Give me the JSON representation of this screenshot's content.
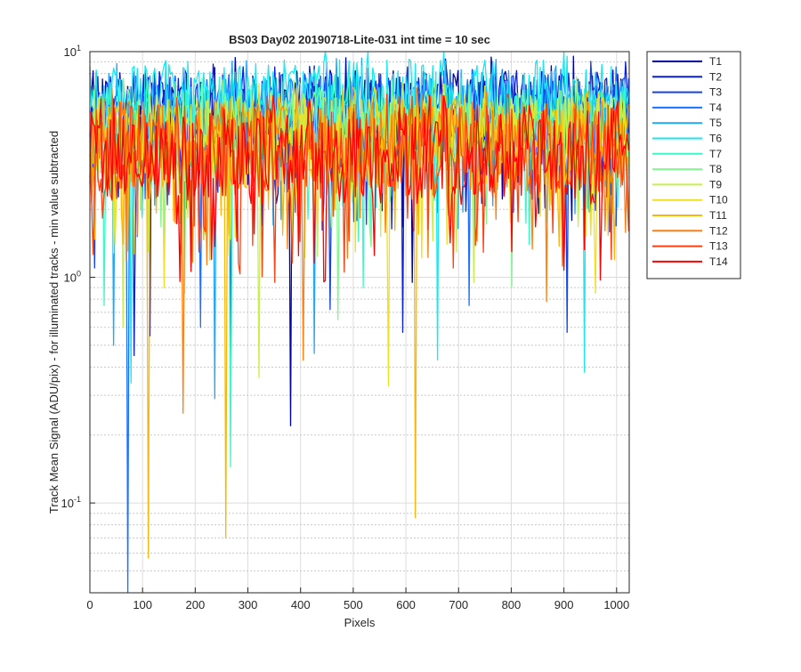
{
  "chart_data": {
    "type": "line",
    "title": "BS03 Day02 20190718-Lite-031 int time = 10 sec",
    "xlabel": "Pixels",
    "ylabel": "Track Mean Signal (ADU/pix) - for illuminated tracks - min value subtracted",
    "xlim": [
      0,
      1024
    ],
    "ylim": [
      0.04,
      10
    ],
    "yscale": "log",
    "grid": true,
    "minor_grid": true,
    "legend_position": "outside-right",
    "xticks": [
      "0",
      "100",
      "200",
      "300",
      "400",
      "500",
      "600",
      "700",
      "800",
      "900",
      "1000"
    ],
    "yticks": [
      {
        "value": 10,
        "base": "10",
        "exp": "1"
      },
      {
        "value": 1,
        "base": "10",
        "exp": "0"
      },
      {
        "value": 0.1,
        "base": "10",
        "exp": "-1"
      }
    ],
    "series": [
      {
        "name": "T1",
        "color": "#0000a8",
        "band": [
          3.6,
          8.5
        ],
        "dips": [
          [
            115,
            0.55
          ],
          [
            380,
            0.22
          ],
          [
            612,
            0.95
          ]
        ]
      },
      {
        "name": "T2",
        "color": "#0a1fe0",
        "band": [
          3.5,
          8.2
        ],
        "dips": [
          [
            84,
            0.45
          ],
          [
            268,
            0.38
          ],
          [
            595,
            0.57
          ]
        ]
      },
      {
        "name": "T3",
        "color": "#1044e8",
        "band": [
          3.4,
          8.0
        ],
        "dips": [
          [
            10,
            1.1
          ],
          [
            455,
            0.72
          ],
          [
            905,
            0.57
          ]
        ]
      },
      {
        "name": "T4",
        "color": "#1a70ff",
        "band": [
          3.3,
          7.8
        ],
        "dips": [
          [
            72,
            0.04
          ],
          [
            210,
            0.6
          ],
          [
            720,
            0.75
          ]
        ]
      },
      {
        "name": "T5",
        "color": "#20a8f8",
        "band": [
          3.6,
          8.3
        ],
        "dips": [
          [
            45,
            0.5
          ],
          [
            238,
            0.29
          ],
          [
            425,
            0.46
          ]
        ]
      },
      {
        "name": "T6",
        "color": "#19e8f0",
        "band": [
          4.2,
          9.2
        ],
        "dips": [
          [
            78,
            0.34
          ],
          [
            660,
            0.43
          ],
          [
            940,
            0.38
          ]
        ]
      },
      {
        "name": "T7",
        "color": "#3cf8c8",
        "band": [
          3.0,
          7.0
        ],
        "dips": [
          [
            28,
            0.75
          ],
          [
            268,
            0.145
          ],
          [
            520,
            0.9
          ]
        ]
      },
      {
        "name": "T8",
        "color": "#82f890",
        "band": [
          2.9,
          6.8
        ],
        "dips": [
          [
            180,
            0.85
          ],
          [
            470,
            0.65
          ],
          [
            800,
            0.9
          ]
        ]
      },
      {
        "name": "T9",
        "color": "#c8f048",
        "band": [
          2.7,
          6.5
        ],
        "dips": [
          [
            64,
            0.6
          ],
          [
            320,
            0.36
          ],
          [
            728,
            0.95
          ]
        ]
      },
      {
        "name": "T10",
        "color": "#f0e020",
        "band": [
          2.6,
          6.3
        ],
        "dips": [
          [
            140,
            0.9
          ],
          [
            568,
            0.33
          ],
          [
            960,
            0.85
          ]
        ]
      },
      {
        "name": "T11",
        "color": "#f8b808",
        "band": [
          2.4,
          6.2
        ],
        "dips": [
          [
            112,
            0.057
          ],
          [
            258,
            0.07
          ],
          [
            617,
            0.086
          ]
        ]
      },
      {
        "name": "T12",
        "color": "#ff8010",
        "band": [
          2.3,
          6.0
        ],
        "dips": [
          [
            176,
            0.25
          ],
          [
            405,
            0.43
          ],
          [
            868,
            0.78
          ]
        ]
      },
      {
        "name": "T13",
        "color": "#ff4010",
        "band": [
          2.2,
          5.8
        ],
        "dips": [
          [
            350,
            0.95
          ],
          [
            690,
            1.1
          ],
          [
            990,
            1.2
          ]
        ]
      },
      {
        "name": "T14",
        "color": "#ff0000",
        "band": [
          2.1,
          5.6
        ],
        "dips": [
          [
            230,
            1.2
          ],
          [
            540,
            1.25
          ],
          [
            800,
            1.3
          ]
        ]
      }
    ]
  }
}
